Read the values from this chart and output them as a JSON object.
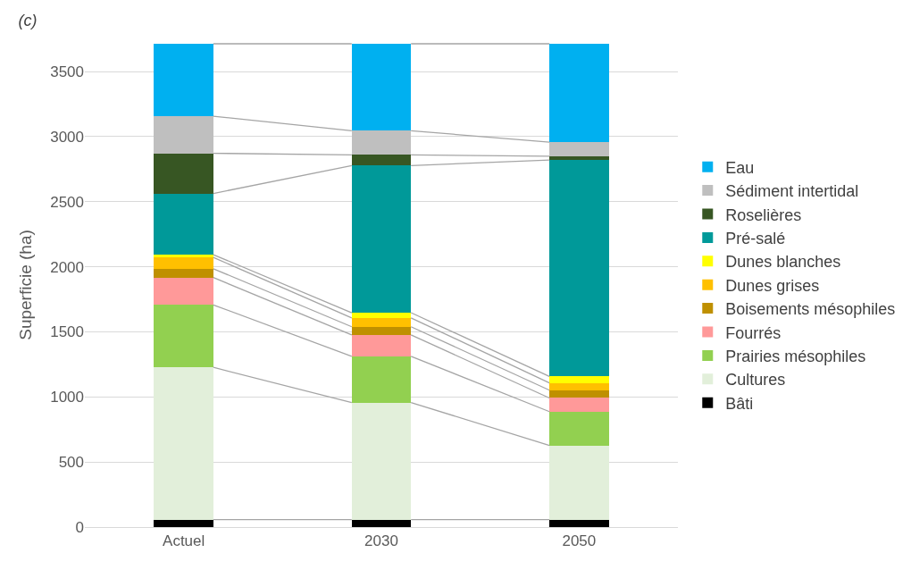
{
  "chart_data": {
    "type": "bar",
    "title": "(c)",
    "ylabel": "Superficie (ha)",
    "stacked": true,
    "categories": [
      "Actuel",
      "2030",
      "2050"
    ],
    "series": [
      {
        "name": "Bâti",
        "color": "#000000",
        "values": [
          57,
          57,
          57
        ]
      },
      {
        "name": "Cultures",
        "color": "#e2efda",
        "values": [
          1170,
          900,
          570
        ]
      },
      {
        "name": "Prairies mésophiles",
        "color": "#92d050",
        "values": [
          480,
          355,
          260
        ]
      },
      {
        "name": "Fourrés",
        "color": "#ff9999",
        "values": [
          210,
          165,
          105
        ]
      },
      {
        "name": "Boisements mésophiles",
        "color": "#bf9000",
        "values": [
          68,
          62,
          60
        ]
      },
      {
        "name": "Dunes grises",
        "color": "#ffc000",
        "values": [
          87,
          68,
          55
        ]
      },
      {
        "name": "Dunes blanches",
        "color": "#ffff00",
        "values": [
          21,
          40,
          50
        ]
      },
      {
        "name": "Pré-salé",
        "color": "#009999",
        "values": [
          470,
          1130,
          1663
        ]
      },
      {
        "name": "Roselières",
        "color": "#375623",
        "values": [
          309,
          82,
          29
        ]
      },
      {
        "name": "Sédiment intertidal",
        "color": "#bfbfbf",
        "values": [
          285,
          186,
          108
        ]
      },
      {
        "name": "Eau",
        "color": "#00b0f0",
        "values": [
          556,
          668,
          756
        ]
      }
    ],
    "ylim": [
      0,
      3720
    ],
    "yticks": [
      0,
      500,
      1000,
      1500,
      2000,
      2500,
      3000,
      3500
    ],
    "grid": "y",
    "legend": "right"
  }
}
